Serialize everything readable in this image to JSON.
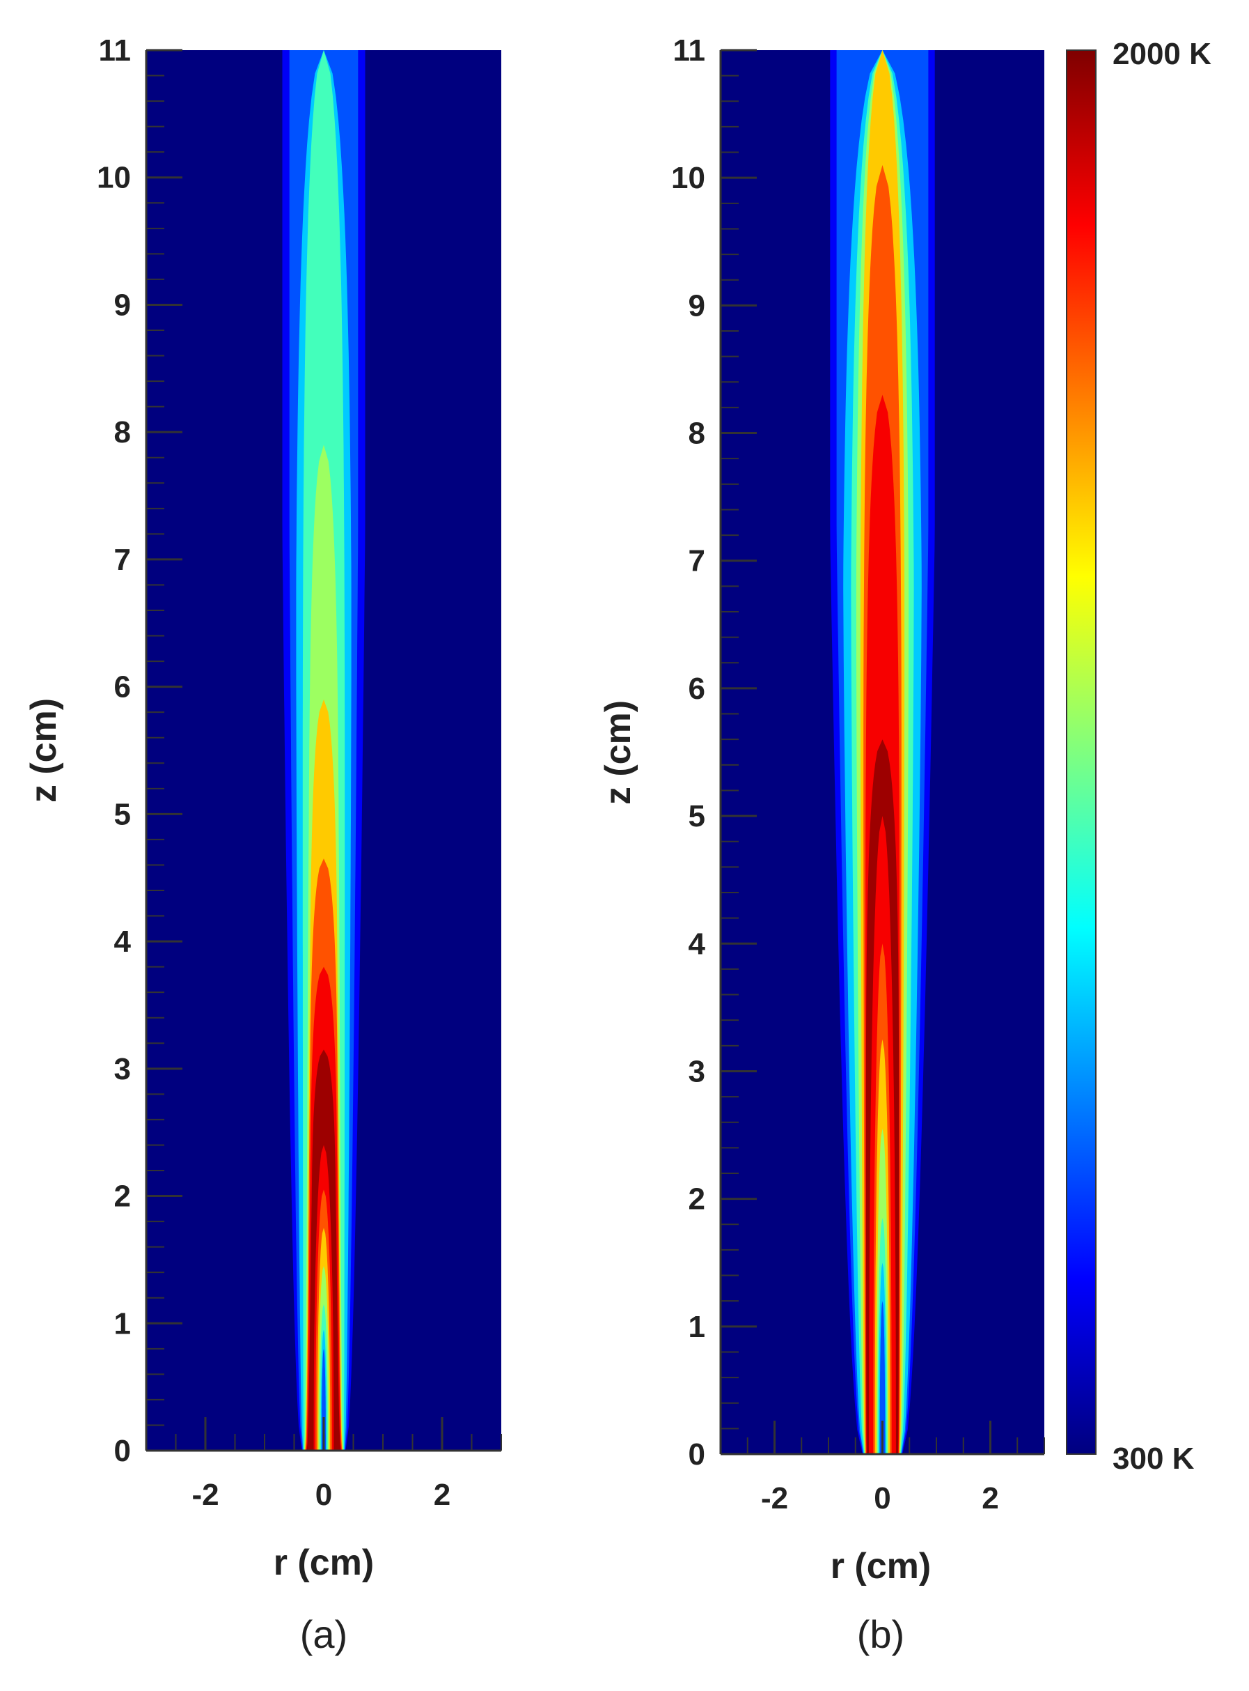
{
  "chart_data": [
    {
      "type": "heatmap",
      "panel_label": "(a)",
      "xlabel": "r (cm)",
      "ylabel": "z (cm)",
      "xlim": [
        -3,
        3
      ],
      "ylim": [
        0,
        11
      ],
      "x_ticks": [
        -2,
        0,
        2
      ],
      "y_ticks": [
        0,
        1,
        2,
        3,
        4,
        5,
        6,
        7,
        8,
        9,
        10,
        11
      ],
      "zlim_K": [
        300,
        2000
      ],
      "background_K": 300,
      "contour_bands": [
        {
          "level_K": 850,
          "r_halfwidth_cm": 0.48,
          "z_top_cm": 11.0
        },
        {
          "level_K": 1050,
          "r_halfwidth_cm": 0.36,
          "z_top_cm": 11.0
        },
        {
          "level_K": 1200,
          "r_halfwidth_cm": 0.26,
          "z_top_cm": 7.9
        },
        {
          "level_K": 1450,
          "r_halfwidth_cm": 0.24,
          "z_top_cm": 5.9
        },
        {
          "level_K": 1650,
          "r_halfwidth_cm": 0.24,
          "z_top_cm": 4.65
        },
        {
          "level_K": 1800,
          "r_halfwidth_cm": 0.23,
          "z_top_cm": 3.8
        },
        {
          "level_K": 1950,
          "r_halfwidth_cm": 0.21,
          "z_top_cm": 3.15
        }
      ],
      "core": [
        {
          "level_K": 1800,
          "r_halfwidth_cm": 0.17,
          "z_top_cm": 2.4
        },
        {
          "level_K": 1650,
          "r_halfwidth_cm": 0.14,
          "z_top_cm": 2.05
        },
        {
          "level_K": 1450,
          "r_halfwidth_cm": 0.11,
          "z_top_cm": 1.75
        },
        {
          "level_K": 1200,
          "r_halfwidth_cm": 0.09,
          "z_top_cm": 1.45
        },
        {
          "level_K": 1050,
          "r_halfwidth_cm": 0.07,
          "z_top_cm": 1.15
        },
        {
          "level_K": 850,
          "r_halfwidth_cm": 0.05,
          "z_top_cm": 0.95
        },
        {
          "level_K": 650,
          "r_halfwidth_cm": 0.035,
          "z_top_cm": 0.8
        }
      ],
      "nozzle_r_cm": 0.24
    },
    {
      "type": "heatmap",
      "panel_label": "(b)",
      "xlabel": "r (cm)",
      "ylabel": "z (cm)",
      "xlim": [
        -3,
        3
      ],
      "ylim": [
        0,
        11
      ],
      "x_ticks": [
        -2,
        0,
        2
      ],
      "y_ticks": [
        0,
        1,
        2,
        3,
        4,
        5,
        6,
        7,
        8,
        9,
        10,
        11
      ],
      "zlim_K": [
        300,
        2000
      ],
      "background_K": 300,
      "contour_bands": [
        {
          "level_K": 850,
          "r_halfwidth_cm": 0.75,
          "z_top_cm": 11.0
        },
        {
          "level_K": 1050,
          "r_halfwidth_cm": 0.6,
          "z_top_cm": 11.0
        },
        {
          "level_K": 1200,
          "r_halfwidth_cm": 0.5,
          "z_top_cm": 11.0
        },
        {
          "level_K": 1450,
          "r_halfwidth_cm": 0.42,
          "z_top_cm": 11.0
        },
        {
          "level_K": 1650,
          "r_halfwidth_cm": 0.36,
          "z_top_cm": 10.1
        },
        {
          "level_K": 1800,
          "r_halfwidth_cm": 0.32,
          "z_top_cm": 8.3
        },
        {
          "level_K": 1950,
          "r_halfwidth_cm": 0.31,
          "z_top_cm": 5.6
        }
      ],
      "core": [
        {
          "level_K": 1800,
          "r_halfwidth_cm": 0.25,
          "z_top_cm": 5.0
        },
        {
          "level_K": 1650,
          "r_halfwidth_cm": 0.17,
          "z_top_cm": 4.0
        },
        {
          "level_K": 1450,
          "r_halfwidth_cm": 0.14,
          "z_top_cm": 3.25
        },
        {
          "level_K": 1200,
          "r_halfwidth_cm": 0.11,
          "z_top_cm": 2.55
        },
        {
          "level_K": 1050,
          "r_halfwidth_cm": 0.09,
          "z_top_cm": 1.85
        },
        {
          "level_K": 850,
          "r_halfwidth_cm": 0.07,
          "z_top_cm": 1.5
        },
        {
          "level_K": 650,
          "r_halfwidth_cm": 0.05,
          "z_top_cm": 1.2
        }
      ],
      "nozzle_r_cm": 0.24
    }
  ],
  "colorbar": {
    "min_label": "300 K",
    "max_label": "2000 K",
    "min_K": 300,
    "max_K": 2000,
    "colormap": [
      "#00007f",
      "#0000ff",
      "#007fff",
      "#00ffff",
      "#7fff7f",
      "#ffff00",
      "#ff7f00",
      "#ff0000",
      "#7f0000"
    ]
  },
  "colors": {
    "background": "#00007f",
    "text": "#222222",
    "tick": "#333333"
  }
}
